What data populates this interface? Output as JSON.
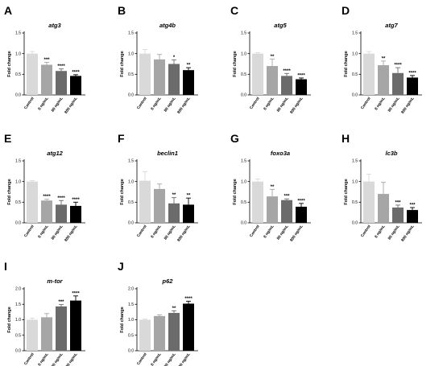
{
  "chart_data": [
    {
      "panel": "A",
      "type": "bar",
      "title": "atg3",
      "ylabel": "Fold change",
      "ylim": [
        0,
        1.5
      ],
      "yticks": [
        "0.0",
        "0.5",
        "1.0",
        "1.5"
      ],
      "categories": [
        "Control",
        "8 ng/mL",
        "80 ng/mL",
        "800 ng/mL"
      ],
      "values": [
        1.0,
        0.73,
        0.58,
        0.46
      ],
      "errors": [
        0.05,
        0.06,
        0.05,
        0.03
      ],
      "significance": [
        "",
        "***",
        "****",
        "****"
      ]
    },
    {
      "panel": "B",
      "type": "bar",
      "title": "atg4b",
      "ylabel": "Fold change",
      "ylim": [
        0,
        1.5
      ],
      "yticks": [
        "0.0",
        "0.5",
        "1.0",
        "1.5"
      ],
      "categories": [
        "Control",
        "8 ng/mL",
        "80 ng/mL",
        "800 ng/mL"
      ],
      "values": [
        1.0,
        0.86,
        0.75,
        0.6
      ],
      "errors": [
        0.1,
        0.12,
        0.1,
        0.06
      ],
      "significance": [
        "",
        "",
        "*",
        "**"
      ]
    },
    {
      "panel": "C",
      "type": "bar",
      "title": "atg5",
      "ylabel": "Fold change",
      "ylim": [
        0,
        1.5
      ],
      "yticks": [
        "0.0",
        "0.5",
        "1.0",
        "1.5"
      ],
      "categories": [
        "Control",
        "8 ng/mL",
        "80 ng/mL",
        "800 ng/mL"
      ],
      "values": [
        1.0,
        0.7,
        0.46,
        0.38
      ],
      "errors": [
        0.02,
        0.17,
        0.06,
        0.03
      ],
      "significance": [
        "",
        "**",
        "****",
        "****"
      ]
    },
    {
      "panel": "D",
      "type": "bar",
      "title": "atg7",
      "ylabel": "Fold change",
      "ylim": [
        0,
        1.5
      ],
      "yticks": [
        "0.0",
        "0.5",
        "1.0",
        "1.5"
      ],
      "categories": [
        "Control",
        "8 ng/mL",
        "80 ng/mL",
        "800 ng/mL"
      ],
      "values": [
        1.0,
        0.72,
        0.53,
        0.42
      ],
      "errors": [
        0.05,
        0.1,
        0.13,
        0.05
      ],
      "significance": [
        "",
        "**",
        "****",
        "****"
      ]
    },
    {
      "panel": "E",
      "type": "bar",
      "title": "atg12",
      "ylabel": "Fold change",
      "ylim": [
        0,
        1.5
      ],
      "yticks": [
        "0.0",
        "0.5",
        "1.0",
        "1.5"
      ],
      "categories": [
        "Control",
        "8 ng/mL",
        "80 ng/mL",
        "800 ng/mL"
      ],
      "values": [
        1.0,
        0.54,
        0.44,
        0.41
      ],
      "errors": [
        0.02,
        0.03,
        0.1,
        0.09
      ],
      "significance": [
        "",
        "****",
        "****",
        "****"
      ]
    },
    {
      "panel": "F",
      "type": "bar",
      "title": "beclin1",
      "ylabel": "Fold change",
      "ylim": [
        0,
        1.5
      ],
      "yticks": [
        "0.0",
        "0.5",
        "1.0",
        "1.5"
      ],
      "categories": [
        "Control",
        "8 ng/mL",
        "80 ng/mL",
        "800 ng/mL"
      ],
      "values": [
        1.02,
        0.82,
        0.47,
        0.44
      ],
      "errors": [
        0.22,
        0.12,
        0.14,
        0.16
      ],
      "significance": [
        "",
        "",
        "**",
        "**"
      ]
    },
    {
      "panel": "G",
      "type": "bar",
      "title": "foxo3a",
      "ylabel": "Fold change",
      "ylim": [
        0,
        1.5
      ],
      "yticks": [
        "0.0",
        "0.5",
        "1.0",
        "1.5"
      ],
      "categories": [
        "Control",
        "8 ng/mL",
        "80 ng/mL",
        "800 ng/mL"
      ],
      "values": [
        1.0,
        0.64,
        0.55,
        0.39
      ],
      "errors": [
        0.06,
        0.17,
        0.03,
        0.08
      ],
      "significance": [
        "",
        "**",
        "***",
        "****"
      ]
    },
    {
      "panel": "H",
      "type": "bar",
      "title": "lc3b",
      "ylabel": "Fold change",
      "ylim": [
        0,
        1.5
      ],
      "yticks": [
        "0.0",
        "0.5",
        "1.0",
        "1.5"
      ],
      "categories": [
        "Control",
        "8 ng/mL",
        "80 ng/mL",
        "800 ng/mL"
      ],
      "values": [
        1.0,
        0.7,
        0.37,
        0.31
      ],
      "errors": [
        0.18,
        0.28,
        0.06,
        0.06
      ],
      "significance": [
        "",
        "",
        "***",
        "***"
      ]
    },
    {
      "panel": "I",
      "type": "bar",
      "title": "m-tor",
      "ylabel": "Fold change",
      "ylim": [
        0,
        2.0
      ],
      "yticks": [
        "0.0",
        "0.5",
        "1.0",
        "1.5",
        "2.0"
      ],
      "categories": [
        "Control",
        "8 ng/mL",
        "80 ng/mL",
        "800 ng/mL"
      ],
      "values": [
        1.0,
        1.08,
        1.43,
        1.62
      ],
      "errors": [
        0.05,
        0.12,
        0.06,
        0.15
      ],
      "significance": [
        "",
        "",
        "***",
        "****"
      ]
    },
    {
      "panel": "J",
      "type": "bar",
      "title": "p62",
      "ylabel": "Fold change",
      "ylim": [
        0,
        2.0
      ],
      "yticks": [
        "0.0",
        "0.5",
        "1.0",
        "1.5",
        "2.0"
      ],
      "categories": [
        "Control",
        "8 ng/mL",
        "80 ng/mL",
        "800 ng/mL"
      ],
      "values": [
        1.0,
        1.12,
        1.22,
        1.52
      ],
      "errors": [
        0.02,
        0.04,
        0.07,
        0.08
      ],
      "significance": [
        "",
        "",
        "**",
        "****"
      ]
    }
  ],
  "colors": {
    "bars": [
      "#d9d9d9",
      "#a6a6a6",
      "#6b6b6b",
      "#000000"
    ],
    "axis": "#000000"
  }
}
